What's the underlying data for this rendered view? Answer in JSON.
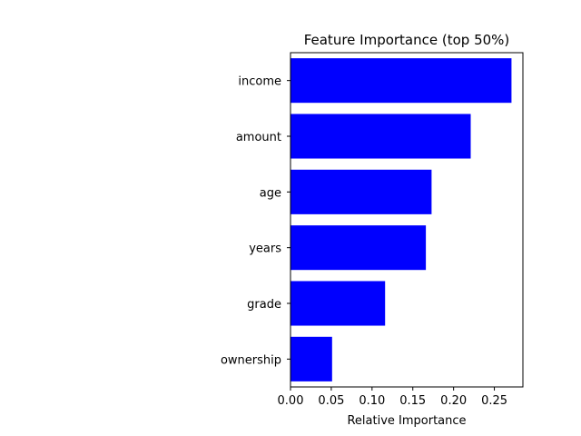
{
  "chart_data": {
    "type": "bar",
    "orientation": "horizontal",
    "title": "Feature Importance (top 50%)",
    "xlabel": "Relative Importance",
    "ylabel": "",
    "categories": [
      "income",
      "amount",
      "age",
      "years",
      "grade",
      "ownership"
    ],
    "values": [
      0.271,
      0.221,
      0.173,
      0.166,
      0.116,
      0.051
    ],
    "xlim": [
      0.0,
      0.285
    ],
    "xticks": [
      "0.00",
      "0.05",
      "0.10",
      "0.15",
      "0.20",
      "0.25"
    ],
    "bar_color": "#0000ff",
    "grid": false,
    "legend": "none"
  }
}
